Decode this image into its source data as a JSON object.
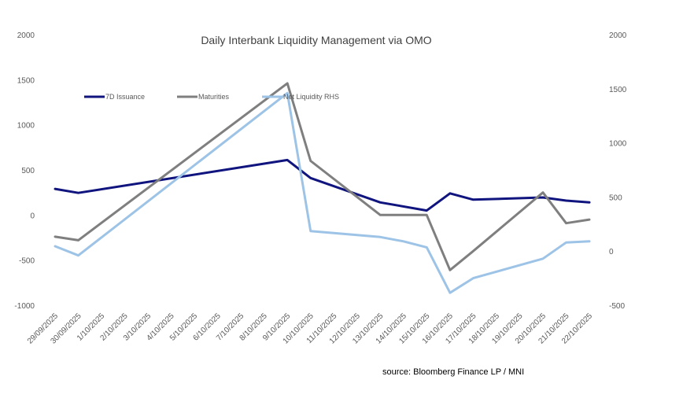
{
  "chart_data": {
    "type": "line",
    "title": "Daily Interbank Liquidity Management via OMO",
    "source": "source: Bloomberg Finance LP / MNI",
    "categories": [
      "29/09/2025",
      "30/09/2025",
      "1/10/2025",
      "2/10/2025",
      "3/10/2025",
      "4/10/2025",
      "5/10/2025",
      "6/10/2025",
      "7/10/2025",
      "8/10/2025",
      "9/10/2025",
      "10/10/2025",
      "11/10/2025",
      "12/10/2025",
      "13/10/2025",
      "14/10/2025",
      "15/10/2025",
      "16/10/2025",
      "17/10/2025",
      "18/10/2025",
      "19/10/2025",
      "20/10/2025",
      "21/10/2025",
      "22/10/2025"
    ],
    "y_left": {
      "min": -1000,
      "max": 2000,
      "ticks": [
        "2000",
        "1500",
        "1000",
        "500",
        "0",
        "-500",
        "-1000"
      ]
    },
    "y_right": {
      "min": -500,
      "max": 2000,
      "ticks": [
        "2000",
        "1500",
        "1000",
        "500",
        "0",
        "-500"
      ]
    },
    "series": [
      {
        "name": "7D Issuance",
        "axis": "left",
        "color": "#10147e",
        "points": [
          [
            0,
            290
          ],
          [
            1,
            245
          ],
          [
            10,
            610
          ],
          [
            11,
            410
          ],
          [
            14,
            140
          ],
          [
            16,
            50
          ],
          [
            17,
            240
          ],
          [
            18,
            170
          ],
          [
            21,
            195
          ],
          [
            22,
            160
          ],
          [
            23,
            140
          ]
        ]
      },
      {
        "name": "Maturities",
        "axis": "left",
        "color": "#7f7f7f",
        "points": [
          [
            0,
            -240
          ],
          [
            1,
            -280
          ],
          [
            10,
            1460
          ],
          [
            11,
            600
          ],
          [
            14,
            0
          ],
          [
            16,
            0
          ],
          [
            17,
            -610
          ],
          [
            18,
            -400
          ],
          [
            21,
            250
          ],
          [
            22,
            -90
          ],
          [
            23,
            -50
          ]
        ]
      },
      {
        "name": "Net Liquidity RHS",
        "axis": "right",
        "color": "#9dc3e6",
        "points": [
          [
            0,
            45
          ],
          [
            1,
            -40
          ],
          [
            10,
            1460
          ],
          [
            11,
            185
          ],
          [
            14,
            130
          ],
          [
            15,
            90
          ],
          [
            16,
            35
          ],
          [
            17,
            -385
          ],
          [
            18,
            -250
          ],
          [
            21,
            -70
          ],
          [
            22,
            80
          ],
          [
            23,
            90
          ]
        ]
      }
    ]
  }
}
